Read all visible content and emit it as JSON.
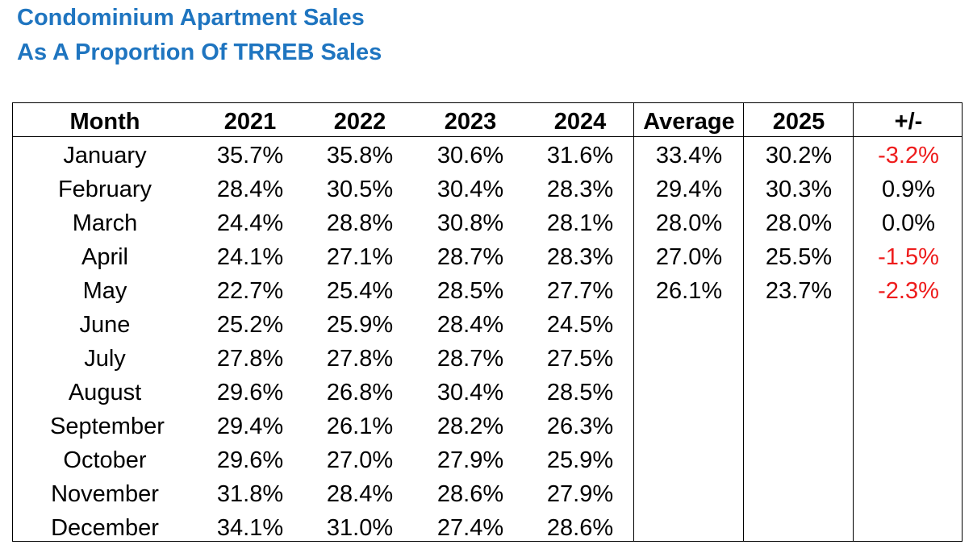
{
  "title_line1": "Condominium Apartment Sales",
  "title_line2": "As A Proportion Of TRREB Sales",
  "colors": {
    "title": "#1f75c0",
    "negative": "#ee1c1c",
    "text": "#000000"
  },
  "chart_data": {
    "type": "table",
    "columns": [
      "Month",
      "2021",
      "2022",
      "2023",
      "2024",
      "Average",
      "2025",
      "+/-"
    ],
    "rows": [
      [
        "January",
        "35.7%",
        "35.8%",
        "30.6%",
        "31.6%",
        "33.4%",
        "30.2%",
        "-3.2%"
      ],
      [
        "February",
        "28.4%",
        "30.5%",
        "30.4%",
        "28.3%",
        "29.4%",
        "30.3%",
        "0.9%"
      ],
      [
        "March",
        "24.4%",
        "28.8%",
        "30.8%",
        "28.1%",
        "28.0%",
        "28.0%",
        "0.0%"
      ],
      [
        "April",
        "24.1%",
        "27.1%",
        "28.7%",
        "28.3%",
        "27.0%",
        "25.5%",
        "-1.5%"
      ],
      [
        "May",
        "22.7%",
        "25.4%",
        "28.5%",
        "27.7%",
        "26.1%",
        "23.7%",
        "-2.3%"
      ],
      [
        "June",
        "25.2%",
        "25.9%",
        "28.4%",
        "24.5%",
        "",
        "",
        ""
      ],
      [
        "July",
        "27.8%",
        "27.8%",
        "28.7%",
        "27.5%",
        "",
        "",
        ""
      ],
      [
        "August",
        "29.6%",
        "26.8%",
        "30.4%",
        "28.5%",
        "",
        "",
        ""
      ],
      [
        "September",
        "29.4%",
        "26.1%",
        "28.2%",
        "26.3%",
        "",
        "",
        ""
      ],
      [
        "October",
        "29.6%",
        "27.0%",
        "27.9%",
        "25.9%",
        "",
        "",
        ""
      ],
      [
        "November",
        "31.8%",
        "28.4%",
        "28.6%",
        "27.9%",
        "",
        "",
        ""
      ],
      [
        "December",
        "34.1%",
        "31.0%",
        "27.4%",
        "28.6%",
        "",
        "",
        ""
      ]
    ]
  }
}
